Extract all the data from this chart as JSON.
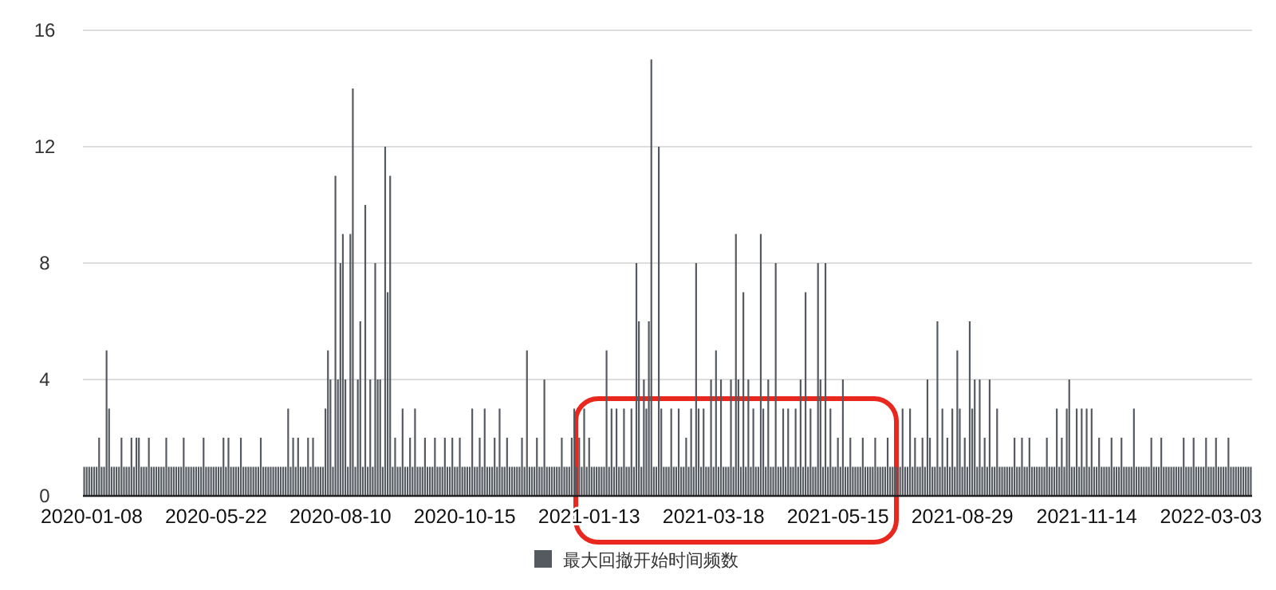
{
  "chart_data": {
    "type": "bar",
    "ylim": [
      0,
      16
    ],
    "yticks": [
      0,
      4,
      8,
      12,
      16
    ],
    "grid": "y",
    "legend": "bottom",
    "categories": [
      null,
      null,
      null,
      "2020-01-08",
      null,
      null,
      null,
      null,
      null,
      null,
      null,
      null,
      null,
      null,
      null,
      null,
      null,
      null,
      null,
      null,
      null,
      null,
      null,
      null,
      null,
      null,
      null,
      null,
      null,
      null,
      null,
      null,
      null,
      null,
      null,
      null,
      null,
      null,
      null,
      null,
      null,
      null,
      null,
      null,
      null,
      null,
      null,
      null,
      null,
      null,
      null,
      null,
      null,
      "2020-05-22",
      null,
      null,
      null,
      null,
      null,
      null,
      null,
      null,
      null,
      null,
      null,
      null,
      null,
      null,
      null,
      null,
      null,
      null,
      null,
      null,
      null,
      null,
      null,
      null,
      null,
      null,
      null,
      null,
      null,
      null,
      null,
      null,
      null,
      null,
      null,
      null,
      null,
      null,
      null,
      null,
      null,
      null,
      null,
      null,
      null,
      null,
      null,
      null,
      null,
      "2020-08-10",
      null,
      null,
      null,
      null,
      null,
      null,
      null,
      null,
      null,
      null,
      null,
      null,
      null,
      null,
      null,
      null,
      null,
      null,
      null,
      null,
      null,
      null,
      null,
      null,
      null,
      null,
      null,
      null,
      null,
      null,
      null,
      null,
      null,
      null,
      null,
      null,
      null,
      null,
      null,
      null,
      null,
      null,
      null,
      null,
      null,
      null,
      null,
      null,
      null,
      "2020-10-15",
      null,
      null,
      null,
      null,
      null,
      null,
      null,
      null,
      null,
      null,
      null,
      null,
      null,
      null,
      null,
      null,
      null,
      null,
      null,
      null,
      null,
      null,
      null,
      null,
      null,
      null,
      null,
      null,
      null,
      null,
      null,
      null,
      null,
      null,
      null,
      null,
      null,
      null,
      null,
      null,
      null,
      null,
      null,
      null,
      null,
      null,
      null,
      null,
      null,
      "2021-01-13",
      null,
      null,
      null,
      null,
      null,
      null,
      null,
      null,
      null,
      null,
      null,
      null,
      null,
      null,
      null,
      null,
      null,
      null,
      null,
      null,
      null,
      null,
      null,
      null,
      null,
      null,
      null,
      null,
      null,
      null,
      null,
      null,
      null,
      null,
      null,
      null,
      null,
      null,
      null,
      null,
      null,
      null,
      null,
      null,
      null,
      null,
      null,
      null,
      null,
      "2021-03-18",
      null,
      null,
      null,
      null,
      null,
      null,
      null,
      null,
      null,
      null,
      null,
      null,
      null,
      null,
      null,
      null,
      null,
      null,
      null,
      null,
      null,
      null,
      null,
      null,
      null,
      null,
      null,
      null,
      null,
      null,
      null,
      null,
      null,
      null,
      null,
      null,
      null,
      null,
      null,
      null,
      null,
      null,
      null,
      null,
      null,
      null,
      null,
      null,
      null,
      "2021-05-15",
      null,
      null,
      null,
      null,
      null,
      null,
      null,
      null,
      null,
      null,
      null,
      null,
      null,
      null,
      null,
      null,
      null,
      null,
      null,
      null,
      null,
      null,
      null,
      null,
      null,
      null,
      null,
      null,
      null,
      null,
      null,
      null,
      null,
      null,
      null,
      null,
      null,
      null,
      null,
      null,
      null,
      null,
      null,
      null,
      null,
      null,
      null,
      null,
      null,
      "2021-08-29",
      null,
      null,
      null,
      null,
      null,
      null,
      null,
      null,
      null,
      null,
      null,
      null,
      null,
      null,
      null,
      null,
      null,
      null,
      null,
      null,
      null,
      null,
      null,
      null,
      null,
      null,
      null,
      null,
      null,
      null,
      null,
      null,
      null,
      null,
      null,
      null,
      null,
      null,
      null,
      null,
      null,
      null,
      null,
      null,
      null,
      null,
      null,
      null,
      null,
      "2021-11-14",
      null,
      null,
      null,
      null,
      null,
      null,
      null,
      null,
      null,
      null,
      null,
      null,
      null,
      null,
      null,
      null,
      null,
      null,
      null,
      null,
      null,
      null,
      null,
      null,
      null,
      null,
      null,
      null,
      null,
      null,
      null,
      null,
      null,
      null,
      null,
      null,
      null,
      null,
      null,
      null,
      null,
      null,
      null,
      null,
      null,
      null,
      null,
      null,
      null,
      "2022-03-03",
      null,
      null,
      null,
      null,
      null,
      null,
      null,
      null,
      null,
      null,
      null,
      null,
      null,
      null,
      null,
      null
    ],
    "series": [
      {
        "name": "最大回撤开始时间频数",
        "color": "#555a61",
        "values": [
          1,
          1,
          1,
          1,
          1,
          1,
          2,
          1,
          1,
          5,
          3,
          1,
          1,
          1,
          1,
          2,
          1,
          1,
          1,
          2,
          1,
          2,
          2,
          1,
          1,
          1,
          2,
          1,
          1,
          1,
          1,
          1,
          1,
          2,
          1,
          1,
          1,
          1,
          1,
          1,
          2,
          1,
          1,
          1,
          1,
          1,
          1,
          1,
          2,
          1,
          1,
          1,
          1,
          1,
          1,
          1,
          2,
          1,
          2,
          1,
          1,
          1,
          1,
          2,
          1,
          1,
          1,
          1,
          1,
          1,
          1,
          2,
          1,
          1,
          1,
          1,
          1,
          1,
          1,
          1,
          1,
          1,
          3,
          1,
          2,
          1,
          2,
          1,
          1,
          1,
          2,
          1,
          2,
          1,
          1,
          1,
          1,
          3,
          5,
          4,
          1,
          11,
          4,
          8,
          9,
          4,
          1,
          9,
          14,
          1,
          4,
          6,
          1,
          10,
          1,
          4,
          1,
          8,
          4,
          4,
          1,
          12,
          7,
          11,
          1,
          2,
          1,
          1,
          3,
          1,
          1,
          2,
          1,
          3,
          1,
          1,
          1,
          2,
          1,
          1,
          1,
          2,
          1,
          1,
          1,
          2,
          1,
          1,
          2,
          1,
          1,
          2,
          1,
          1,
          1,
          1,
          3,
          1,
          1,
          2,
          1,
          3,
          1,
          1,
          1,
          2,
          1,
          3,
          1,
          1,
          2,
          1,
          1,
          1,
          1,
          1,
          2,
          1,
          5,
          1,
          1,
          1,
          2,
          1,
          1,
          4,
          1,
          1,
          1,
          1,
          1,
          1,
          2,
          1,
          1,
          1,
          2,
          3,
          1,
          2,
          1,
          3,
          1,
          2,
          1,
          1,
          1,
          1,
          1,
          1,
          5,
          1,
          3,
          1,
          3,
          1,
          1,
          3,
          1,
          1,
          3,
          1,
          8,
          6,
          1,
          4,
          3,
          6,
          15,
          1,
          1,
          12,
          3,
          1,
          1,
          1,
          3,
          1,
          1,
          3,
          1,
          1,
          2,
          1,
          3,
          1,
          8,
          3,
          1,
          3,
          1,
          1,
          4,
          1,
          5,
          1,
          4,
          1,
          1,
          1,
          4,
          1,
          9,
          4,
          1,
          7,
          1,
          4,
          1,
          3,
          1,
          1,
          9,
          3,
          1,
          4,
          1,
          1,
          8,
          1,
          1,
          3,
          1,
          3,
          1,
          1,
          3,
          1,
          4,
          1,
          7,
          1,
          3,
          1,
          1,
          8,
          4,
          1,
          8,
          1,
          3,
          1,
          1,
          2,
          1,
          4,
          1,
          1,
          2,
          1,
          1,
          1,
          1,
          2,
          1,
          1,
          1,
          1,
          2,
          1,
          1,
          1,
          1,
          2,
          1,
          1,
          1,
          1,
          1,
          3,
          1,
          1,
          3,
          1,
          2,
          1,
          1,
          2,
          1,
          4,
          2,
          1,
          1,
          6,
          1,
          3,
          1,
          2,
          1,
          3,
          1,
          5,
          3,
          1,
          2,
          1,
          6,
          3,
          4,
          1,
          4,
          1,
          2,
          1,
          4,
          1,
          1,
          3,
          1,
          1,
          1,
          1,
          1,
          1,
          2,
          1,
          1,
          2,
          1,
          1,
          2,
          1,
          1,
          1,
          1,
          1,
          1,
          2,
          1,
          1,
          1,
          3,
          1,
          2,
          1,
          3,
          4,
          1,
          1,
          3,
          1,
          3,
          1,
          3,
          1,
          3,
          1,
          1,
          2,
          1,
          1,
          1,
          1,
          2,
          1,
          1,
          1,
          2,
          1,
          1,
          1,
          1,
          3,
          1,
          1,
          1,
          1,
          1,
          1,
          2,
          1,
          1,
          1,
          2,
          1,
          1,
          1,
          1,
          1,
          1,
          1,
          1,
          2,
          1,
          1,
          1,
          2,
          1,
          1,
          1,
          1,
          2,
          1,
          1,
          1,
          2,
          1,
          1,
          1,
          1,
          2,
          1,
          1,
          1,
          1,
          1,
          1,
          1,
          1,
          1
        ]
      }
    ]
  }
}
